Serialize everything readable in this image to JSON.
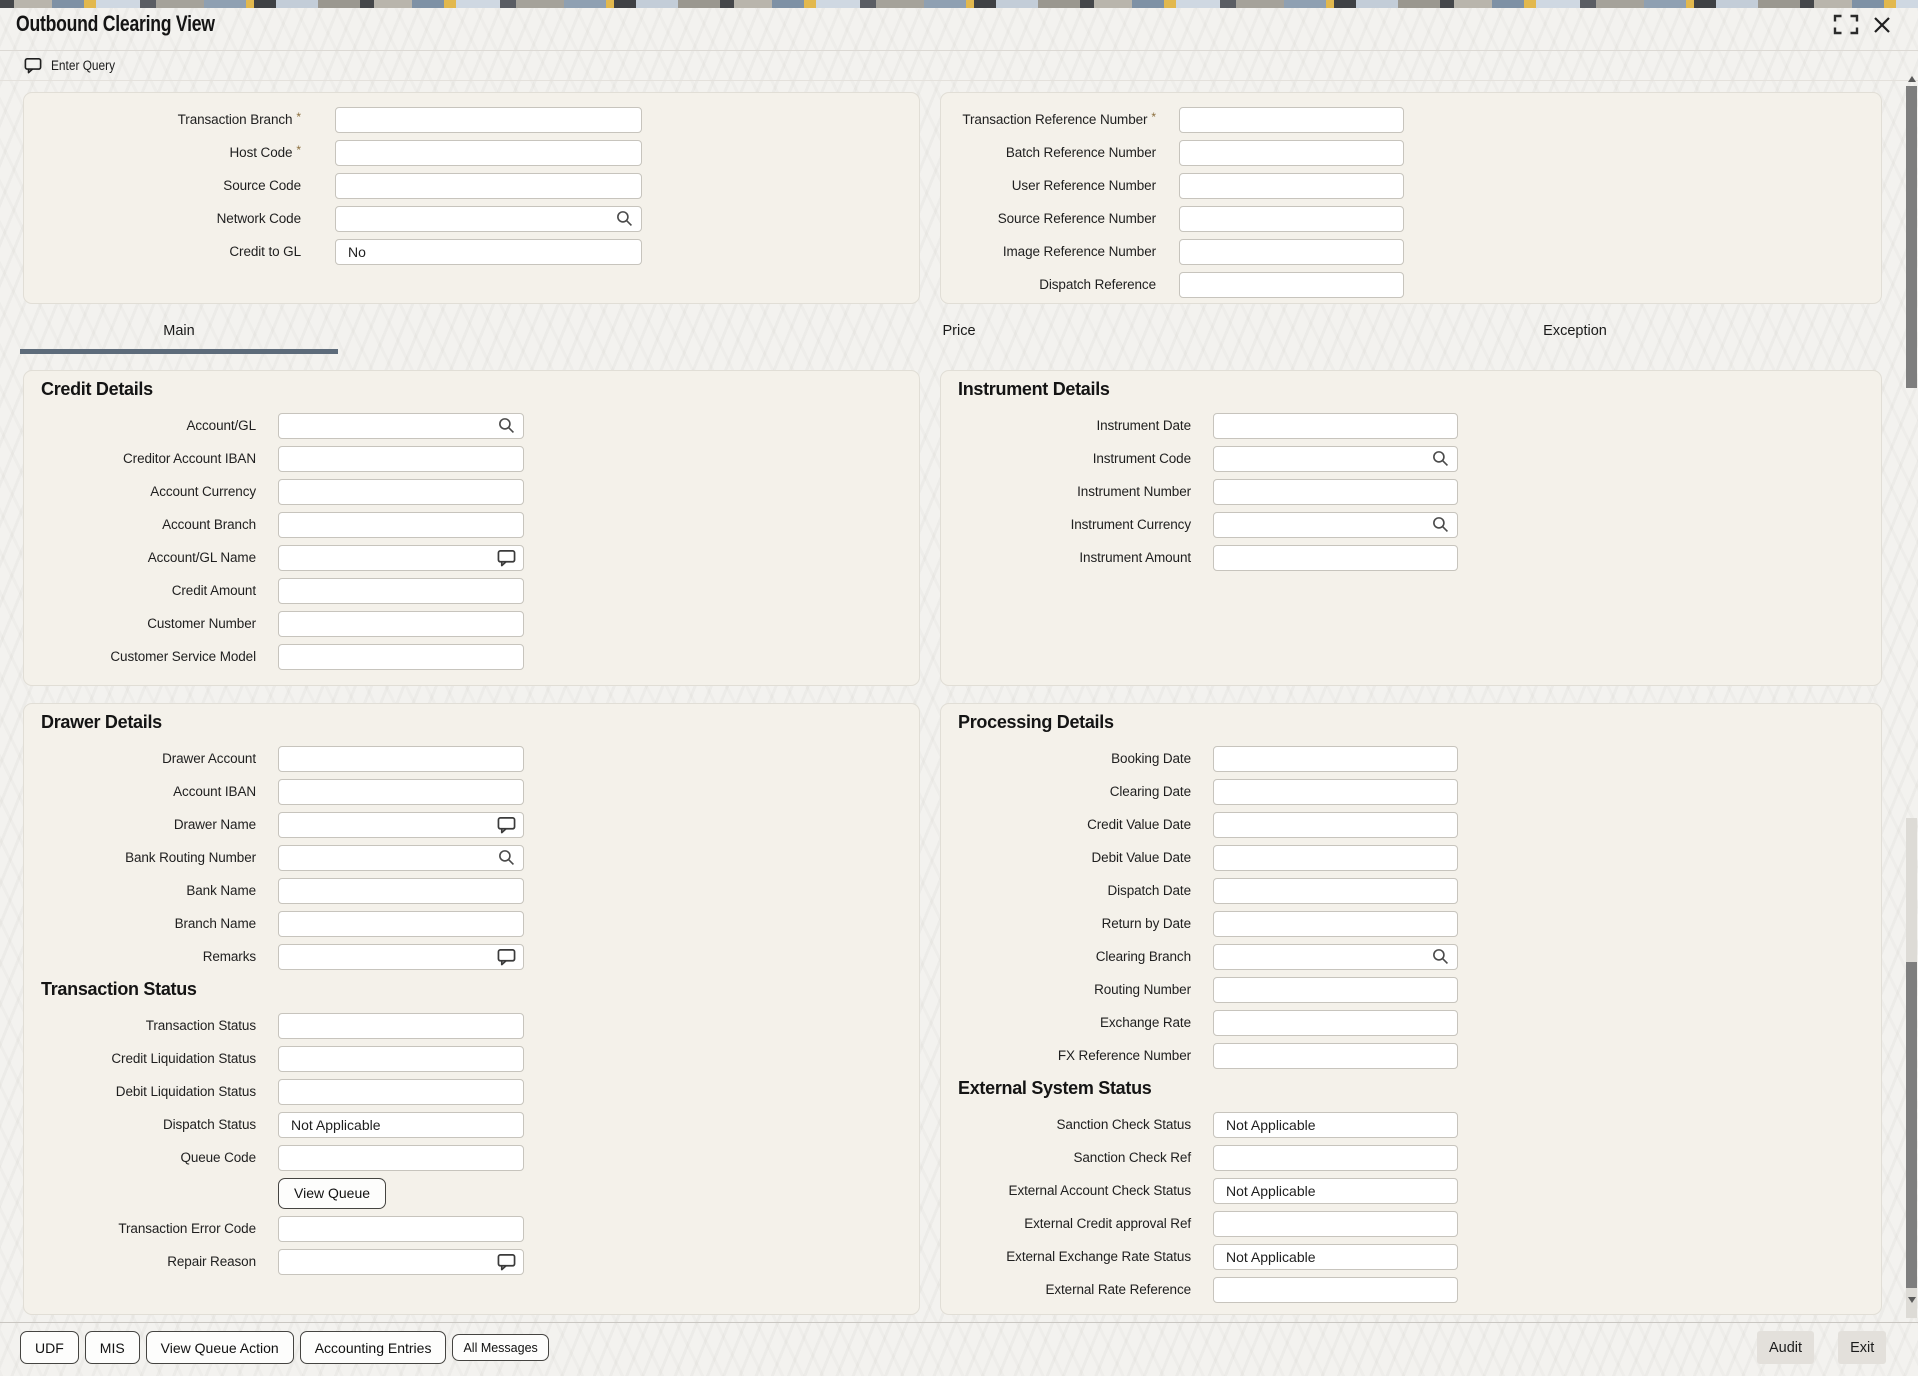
{
  "header": {
    "title": "Outbound Clearing View",
    "enter_query_label": "Enter Query"
  },
  "window_controls": {
    "maximize_icon": "maximize-icon",
    "close_icon": "close-icon"
  },
  "tabs": [
    {
      "label": "Main",
      "active": true
    },
    {
      "label": "Price",
      "active": false
    },
    {
      "label": "Exception",
      "active": false
    }
  ],
  "top_panels": {
    "left_fields": [
      {
        "label": "Transaction Branch",
        "required": true
      },
      {
        "label": "Host Code",
        "required": true
      },
      {
        "label": "Source Code"
      },
      {
        "label": "Network Code",
        "icon": "search"
      },
      {
        "label": "Credit to GL",
        "value": "No"
      }
    ],
    "right_fields": [
      {
        "label": "Transaction Reference Number",
        "required": true
      },
      {
        "label": "Batch Reference Number"
      },
      {
        "label": "User Reference Number"
      },
      {
        "label": "Source Reference Number"
      },
      {
        "label": "Image Reference Number"
      },
      {
        "label": "Dispatch Reference"
      }
    ]
  },
  "sections": {
    "credit_details": {
      "title": "Credit Details",
      "fields": [
        {
          "label": "Account/GL",
          "icon": "search"
        },
        {
          "label": "Creditor Account IBAN"
        },
        {
          "label": "Account Currency"
        },
        {
          "label": "Account Branch"
        },
        {
          "label": "Account/GL Name",
          "icon": "comment"
        },
        {
          "label": "Credit Amount"
        },
        {
          "label": "Customer Number"
        },
        {
          "label": "Customer Service Model"
        }
      ]
    },
    "instrument_details": {
      "title": "Instrument Details",
      "fields": [
        {
          "label": "Instrument Date"
        },
        {
          "label": "Instrument Code",
          "icon": "search"
        },
        {
          "label": "Instrument Number"
        },
        {
          "label": "Instrument Currency",
          "icon": "search"
        },
        {
          "label": "Instrument Amount"
        }
      ]
    },
    "drawer_details": {
      "title": "Drawer Details",
      "fields": [
        {
          "label": "Drawer Account"
        },
        {
          "label": "Account IBAN"
        },
        {
          "label": "Drawer Name",
          "icon": "comment"
        },
        {
          "label": "Bank Routing Number",
          "icon": "search"
        },
        {
          "label": "Bank Name"
        },
        {
          "label": "Branch Name"
        },
        {
          "label": "Remarks",
          "icon": "comment"
        }
      ]
    },
    "transaction_status": {
      "title": "Transaction Status",
      "fields": [
        {
          "label": "Transaction Status"
        },
        {
          "label": "Credit Liquidation Status"
        },
        {
          "label": "Debit Liquidation Status"
        },
        {
          "label": "Dispatch Status",
          "value": "Not Applicable"
        },
        {
          "label": "Queue Code"
        },
        {
          "button": "View Queue"
        },
        {
          "label": "Transaction Error Code"
        },
        {
          "label": "Repair Reason",
          "icon": "comment"
        }
      ]
    },
    "processing_details": {
      "title": "Processing Details",
      "fields": [
        {
          "label": "Booking Date"
        },
        {
          "label": "Clearing Date"
        },
        {
          "label": "Credit Value Date"
        },
        {
          "label": "Debit Value Date"
        },
        {
          "label": "Dispatch Date"
        },
        {
          "label": "Return by Date"
        },
        {
          "label": "Clearing Branch",
          "icon": "search"
        },
        {
          "label": "Routing Number"
        },
        {
          "label": "Exchange Rate"
        },
        {
          "label": "FX Reference Number"
        }
      ]
    },
    "external_system_status": {
      "title": "External System Status",
      "fields": [
        {
          "label": "Sanction Check Status",
          "value": "Not Applicable"
        },
        {
          "label": "Sanction Check Ref"
        },
        {
          "label": "External Account Check Status",
          "value": "Not Applicable"
        },
        {
          "label": "External Credit approval Ref"
        },
        {
          "label": "External Exchange Rate Status",
          "value": "Not Applicable"
        },
        {
          "label": "External Rate Reference"
        }
      ]
    }
  },
  "toolbar": {
    "buttons": [
      "UDF",
      "MIS",
      "View Queue Action",
      "Accounting Entries",
      "All Messages"
    ],
    "right_buttons": [
      "Audit",
      "Exit"
    ]
  },
  "colors": {
    "tab_underline": "#5d6b7a",
    "panel_background": "#f4f1ea",
    "required_asterisk": "#8a6d3b",
    "deco_gold": "#e2b84e",
    "deco_slate": "#7e91a5"
  }
}
